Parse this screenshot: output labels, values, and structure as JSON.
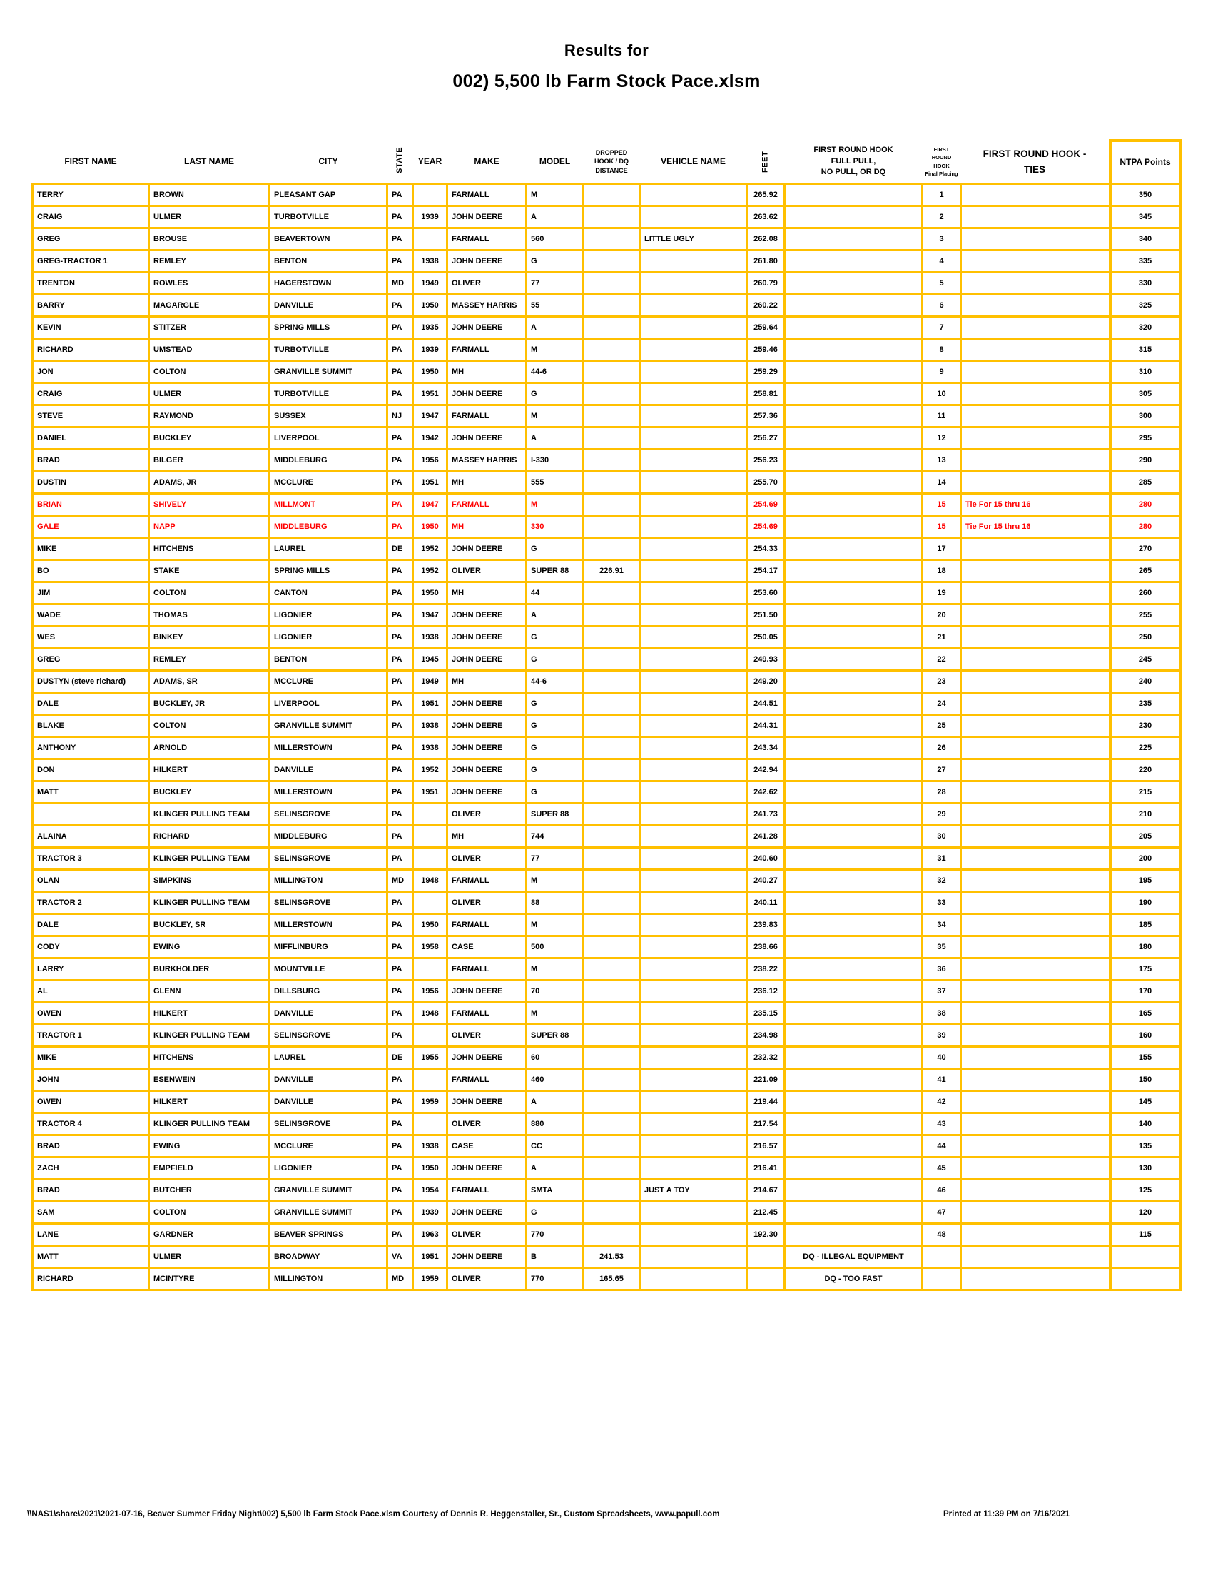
{
  "title": {
    "line1": "Results for",
    "line2": "002) 5,500 lb Farm Stock Pace.xlsm"
  },
  "colors": {
    "grid": "#FFC000",
    "tie_row_text": "#FF0000",
    "text": "#000000"
  },
  "table": {
    "header": {
      "first_name": "FIRST NAME",
      "last_name": "LAST NAME",
      "city": "CITY",
      "state": "STATE",
      "year": "YEAR",
      "make": "MAKE",
      "model": "MODEL",
      "dropped": "DROPPED\nHOOK / DQ\nDISTANCE",
      "vehicle_name": "VEHICLE NAME",
      "feet": "FEET",
      "full_pull": "FIRST ROUND HOOK\nFULL PULL,\nNO PULL, OR DQ",
      "placing": "FIRST ROUND\nHOOK\nFinal Placing",
      "ties": "FIRST ROUND HOOK -\nTIES",
      "ntpa": "NTPA Points"
    },
    "rows": [
      {
        "red": false,
        "cells": [
          "TERRY",
          "BROWN",
          "PLEASANT GAP",
          "PA",
          "",
          "FARMALL",
          "M",
          "",
          "",
          "265.92",
          "",
          "1",
          "",
          "350"
        ]
      },
      {
        "red": false,
        "cells": [
          "CRAIG",
          "ULMER",
          "TURBOTVILLE",
          "PA",
          "1939",
          "JOHN DEERE",
          "A",
          "",
          "",
          "263.62",
          "",
          "2",
          "",
          "345"
        ]
      },
      {
        "red": false,
        "cells": [
          "GREG",
          "BROUSE",
          "BEAVERTOWN",
          "PA",
          "",
          "FARMALL",
          "560",
          "",
          "LITTLE UGLY",
          "262.08",
          "",
          "3",
          "",
          "340"
        ]
      },
      {
        "red": false,
        "cells": [
          "GREG-TRACTOR 1",
          "REMLEY",
          "BENTON",
          "PA",
          "1938",
          "JOHN DEERE",
          "G",
          "",
          "",
          "261.80",
          "",
          "4",
          "",
          "335"
        ]
      },
      {
        "red": false,
        "cells": [
          "TRENTON",
          "ROWLES",
          "HAGERSTOWN",
          "MD",
          "1949",
          "OLIVER",
          "77",
          "",
          "",
          "260.79",
          "",
          "5",
          "",
          "330"
        ]
      },
      {
        "red": false,
        "cells": [
          "BARRY",
          "MAGARGLE",
          "DANVILLE",
          "PA",
          "1950",
          "MASSEY HARRIS",
          "55",
          "",
          "",
          "260.22",
          "",
          "6",
          "",
          "325"
        ]
      },
      {
        "red": false,
        "cells": [
          "KEVIN",
          "STITZER",
          "SPRING MILLS",
          "PA",
          "1935",
          "JOHN DEERE",
          "A",
          "",
          "",
          "259.64",
          "",
          "7",
          "",
          "320"
        ]
      },
      {
        "red": false,
        "cells": [
          "RICHARD",
          "UMSTEAD",
          "TURBOTVILLE",
          "PA",
          "1939",
          "FARMALL",
          "M",
          "",
          "",
          "259.46",
          "",
          "8",
          "",
          "315"
        ]
      },
      {
        "red": false,
        "cells": [
          "JON",
          "COLTON",
          "GRANVILLE SUMMIT",
          "PA",
          "1950",
          "MH",
          "44-6",
          "",
          "",
          "259.29",
          "",
          "9",
          "",
          "310"
        ]
      },
      {
        "red": false,
        "cells": [
          "CRAIG",
          "ULMER",
          "TURBOTVILLE",
          "PA",
          "1951",
          "JOHN DEERE",
          "G",
          "",
          "",
          "258.81",
          "",
          "10",
          "",
          "305"
        ]
      },
      {
        "red": false,
        "cells": [
          "STEVE",
          "RAYMOND",
          "SUSSEX",
          "NJ",
          "1947",
          "FARMALL",
          "M",
          "",
          "",
          "257.36",
          "",
          "11",
          "",
          "300"
        ]
      },
      {
        "red": false,
        "cells": [
          "DANIEL",
          "BUCKLEY",
          "LIVERPOOL",
          "PA",
          "1942",
          "JOHN DEERE",
          "A",
          "",
          "",
          "256.27",
          "",
          "12",
          "",
          "295"
        ]
      },
      {
        "red": false,
        "cells": [
          "BRAD",
          "BILGER",
          "MIDDLEBURG",
          "PA",
          "1956",
          "MASSEY HARRIS",
          "I-330",
          "",
          "",
          "256.23",
          "",
          "13",
          "",
          "290"
        ]
      },
      {
        "red": false,
        "cells": [
          "DUSTIN",
          "ADAMS, JR",
          "MCCLURE",
          "PA",
          "1951",
          "MH",
          "555",
          "",
          "",
          "255.70",
          "",
          "14",
          "",
          "285"
        ]
      },
      {
        "red": true,
        "cells": [
          "BRIAN",
          "SHIVELY",
          "MILLMONT",
          "PA",
          "1947",
          "FARMALL",
          "M",
          "",
          "",
          "254.69",
          "",
          "15",
          "Tie For 15 thru 16",
          "280"
        ]
      },
      {
        "red": true,
        "cells": [
          "GALE",
          "NAPP",
          "MIDDLEBURG",
          "PA",
          "1950",
          "MH",
          "330",
          "",
          "",
          "254.69",
          "",
          "15",
          "Tie For 15 thru 16",
          "280"
        ]
      },
      {
        "red": false,
        "cells": [
          "MIKE",
          "HITCHENS",
          "LAUREL",
          "DE",
          "1952",
          "JOHN DEERE",
          "G",
          "",
          "",
          "254.33",
          "",
          "17",
          "",
          "270"
        ]
      },
      {
        "red": false,
        "cells": [
          "BO",
          "STAKE",
          "SPRING MILLS",
          "PA",
          "1952",
          "OLIVER",
          "SUPER 88",
          "226.91",
          "",
          "254.17",
          "",
          "18",
          "",
          "265"
        ]
      },
      {
        "red": false,
        "cells": [
          "JIM",
          "COLTON",
          "CANTON",
          "PA",
          "1950",
          "MH",
          "44",
          "",
          "",
          "253.60",
          "",
          "19",
          "",
          "260"
        ]
      },
      {
        "red": false,
        "cells": [
          "WADE",
          "THOMAS",
          "LIGONIER",
          "PA",
          "1947",
          "JOHN DEERE",
          "A",
          "",
          "",
          "251.50",
          "",
          "20",
          "",
          "255"
        ]
      },
      {
        "red": false,
        "cells": [
          "WES",
          "BINKEY",
          "LIGONIER",
          "PA",
          "1938",
          "JOHN DEERE",
          "G",
          "",
          "",
          "250.05",
          "",
          "21",
          "",
          "250"
        ]
      },
      {
        "red": false,
        "cells": [
          "GREG",
          "REMLEY",
          "BENTON",
          "PA",
          "1945",
          "JOHN DEERE",
          "G",
          "",
          "",
          "249.93",
          "",
          "22",
          "",
          "245"
        ]
      },
      {
        "red": false,
        "cells": [
          "DUSTYN (steve richard)",
          "ADAMS, SR",
          "MCCLURE",
          "PA",
          "1949",
          "MH",
          "44-6",
          "",
          "",
          "249.20",
          "",
          "23",
          "",
          "240"
        ]
      },
      {
        "red": false,
        "cells": [
          "DALE",
          "BUCKLEY, JR",
          "LIVERPOOL",
          "PA",
          "1951",
          "JOHN DEERE",
          "G",
          "",
          "",
          "244.51",
          "",
          "24",
          "",
          "235"
        ]
      },
      {
        "red": false,
        "cells": [
          "BLAKE",
          "COLTON",
          "GRANVILLE SUMMIT",
          "PA",
          "1938",
          "JOHN DEERE",
          "G",
          "",
          "",
          "244.31",
          "",
          "25",
          "",
          "230"
        ]
      },
      {
        "red": false,
        "cells": [
          "ANTHONY",
          "ARNOLD",
          "MILLERSTOWN",
          "PA",
          "1938",
          "JOHN DEERE",
          "G",
          "",
          "",
          "243.34",
          "",
          "26",
          "",
          "225"
        ]
      },
      {
        "red": false,
        "cells": [
          "DON",
          "HILKERT",
          "DANVILLE",
          "PA",
          "1952",
          "JOHN DEERE",
          "G",
          "",
          "",
          "242.94",
          "",
          "27",
          "",
          "220"
        ]
      },
      {
        "red": false,
        "cells": [
          "MATT",
          "BUCKLEY",
          "MILLERSTOWN",
          "PA",
          "1951",
          "JOHN DEERE",
          "G",
          "",
          "",
          "242.62",
          "",
          "28",
          "",
          "215"
        ]
      },
      {
        "red": false,
        "cells": [
          "",
          "KLINGER PULLING TEAM",
          "SELINSGROVE",
          "PA",
          "",
          "OLIVER",
          "SUPER 88",
          "",
          "",
          "241.73",
          "",
          "29",
          "",
          "210"
        ]
      },
      {
        "red": false,
        "cells": [
          "ALAINA",
          "RICHARD",
          "MIDDLEBURG",
          "PA",
          "",
          "MH",
          "744",
          "",
          "",
          "241.28",
          "",
          "30",
          "",
          "205"
        ]
      },
      {
        "red": false,
        "cells": [
          "TRACTOR 3",
          "KLINGER PULLING TEAM",
          "SELINSGROVE",
          "PA",
          "",
          "OLIVER",
          "77",
          "",
          "",
          "240.60",
          "",
          "31",
          "",
          "200"
        ]
      },
      {
        "red": false,
        "cells": [
          "OLAN",
          "SIMPKINS",
          "MILLINGTON",
          "MD",
          "1948",
          "FARMALL",
          "M",
          "",
          "",
          "240.27",
          "",
          "32",
          "",
          "195"
        ]
      },
      {
        "red": false,
        "cells": [
          "TRACTOR 2",
          "KLINGER PULLING TEAM",
          "SELINSGROVE",
          "PA",
          "",
          "OLIVER",
          "88",
          "",
          "",
          "240.11",
          "",
          "33",
          "",
          "190"
        ]
      },
      {
        "red": false,
        "cells": [
          "DALE",
          "BUCKLEY, SR",
          "MILLERSTOWN",
          "PA",
          "1950",
          "FARMALL",
          "M",
          "",
          "",
          "239.83",
          "",
          "34",
          "",
          "185"
        ]
      },
      {
        "red": false,
        "cells": [
          "CODY",
          "EWING",
          "MIFFLINBURG",
          "PA",
          "1958",
          "CASE",
          "500",
          "",
          "",
          "238.66",
          "",
          "35",
          "",
          "180"
        ]
      },
      {
        "red": false,
        "cells": [
          "LARRY",
          "BURKHOLDER",
          "MOUNTVILLE",
          "PA",
          "",
          "FARMALL",
          "M",
          "",
          "",
          "238.22",
          "",
          "36",
          "",
          "175"
        ]
      },
      {
        "red": false,
        "cells": [
          "AL",
          "GLENN",
          "DILLSBURG",
          "PA",
          "1956",
          "JOHN DEERE",
          "70",
          "",
          "",
          "236.12",
          "",
          "37",
          "",
          "170"
        ]
      },
      {
        "red": false,
        "cells": [
          "OWEN",
          "HILKERT",
          "DANVILLE",
          "PA",
          "1948",
          "FARMALL",
          "M",
          "",
          "",
          "235.15",
          "",
          "38",
          "",
          "165"
        ]
      },
      {
        "red": false,
        "cells": [
          "TRACTOR 1",
          "KLINGER PULLING TEAM",
          "SELINSGROVE",
          "PA",
          "",
          "OLIVER",
          "SUPER 88",
          "",
          "",
          "234.98",
          "",
          "39",
          "",
          "160"
        ]
      },
      {
        "red": false,
        "cells": [
          "MIKE",
          "HITCHENS",
          "LAUREL",
          "DE",
          "1955",
          "JOHN DEERE",
          "60",
          "",
          "",
          "232.32",
          "",
          "40",
          "",
          "155"
        ]
      },
      {
        "red": false,
        "cells": [
          "JOHN",
          "ESENWEIN",
          "DANVILLE",
          "PA",
          "",
          "FARMALL",
          "460",
          "",
          "",
          "221.09",
          "",
          "41",
          "",
          "150"
        ]
      },
      {
        "red": false,
        "cells": [
          "OWEN",
          "HILKERT",
          "DANVILLE",
          "PA",
          "1959",
          "JOHN DEERE",
          "A",
          "",
          "",
          "219.44",
          "",
          "42",
          "",
          "145"
        ]
      },
      {
        "red": false,
        "cells": [
          "TRACTOR 4",
          "KLINGER PULLING TEAM",
          "SELINSGROVE",
          "PA",
          "",
          "OLIVER",
          "880",
          "",
          "",
          "217.54",
          "",
          "43",
          "",
          "140"
        ]
      },
      {
        "red": false,
        "cells": [
          "BRAD",
          "EWING",
          "MCCLURE",
          "PA",
          "1938",
          "CASE",
          "CC",
          "",
          "",
          "216.57",
          "",
          "44",
          "",
          "135"
        ]
      },
      {
        "red": false,
        "cells": [
          "ZACH",
          "EMPFIELD",
          "LIGONIER",
          "PA",
          "1950",
          "JOHN DEERE",
          "A",
          "",
          "",
          "216.41",
          "",
          "45",
          "",
          "130"
        ]
      },
      {
        "red": false,
        "cells": [
          "BRAD",
          "BUTCHER",
          "GRANVILLE SUMMIT",
          "PA",
          "1954",
          "FARMALL",
          "SMTA",
          "",
          "JUST A TOY",
          "214.67",
          "",
          "46",
          "",
          "125"
        ]
      },
      {
        "red": false,
        "cells": [
          "SAM",
          "COLTON",
          "GRANVILLE SUMMIT",
          "PA",
          "1939",
          "JOHN DEERE",
          "G",
          "",
          "",
          "212.45",
          "",
          "47",
          "",
          "120"
        ]
      },
      {
        "red": false,
        "cells": [
          "LANE",
          "GARDNER",
          "BEAVER SPRINGS",
          "PA",
          "1963",
          "OLIVER",
          "770",
          "",
          "",
          "192.30",
          "",
          "48",
          "",
          "115"
        ]
      },
      {
        "red": false,
        "cells": [
          "MATT",
          "ULMER",
          "BROADWAY",
          "VA",
          "1951",
          "JOHN DEERE",
          "B",
          "241.53",
          "",
          "",
          "DQ - ILLEGAL EQUIPMENT",
          "",
          "",
          ""
        ]
      },
      {
        "red": false,
        "cells": [
          "RICHARD",
          "MCINTYRE",
          "MILLINGTON",
          "MD",
          "1959",
          "OLIVER",
          "770",
          "165.65",
          "",
          "",
          "DQ - TOO FAST",
          "",
          "",
          ""
        ]
      }
    ]
  },
  "footer": {
    "left": "\\\\NAS1\\share\\2021\\2021-07-16, Beaver Summer Friday Night\\002) 5,500 lb Farm Stock Pace.xlsm  Courtesy of Dennis R. Heggenstaller, Sr., Custom Spreadsheets, www.papull.com",
    "right": "Printed at 11:39 PM on 7/16/2021"
  }
}
